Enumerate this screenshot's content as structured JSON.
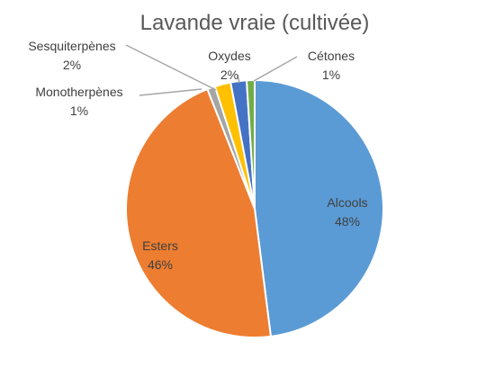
{
  "chart_data": {
    "type": "pie",
    "title": "Lavande vraie (cultivée)",
    "slices": [
      {
        "name": "Alcools",
        "value": 48,
        "label": "48%",
        "color": "#5B9BD5"
      },
      {
        "name": "Esters",
        "value": 46,
        "label": "46%",
        "color": "#ED7D31"
      },
      {
        "name": "Monotherpènes",
        "value": 1,
        "label": "1%",
        "color": "#A5A5A5"
      },
      {
        "name": "Sesquiterpènes",
        "value": 2,
        "label": "2%",
        "color": "#FFC000"
      },
      {
        "name": "Oxydes",
        "value": 2,
        "label": "2%",
        "color": "#4472C4"
      },
      {
        "name": "Cétones",
        "value": 1,
        "label": "1%",
        "color": "#70AD47"
      }
    ],
    "legend": "none"
  }
}
